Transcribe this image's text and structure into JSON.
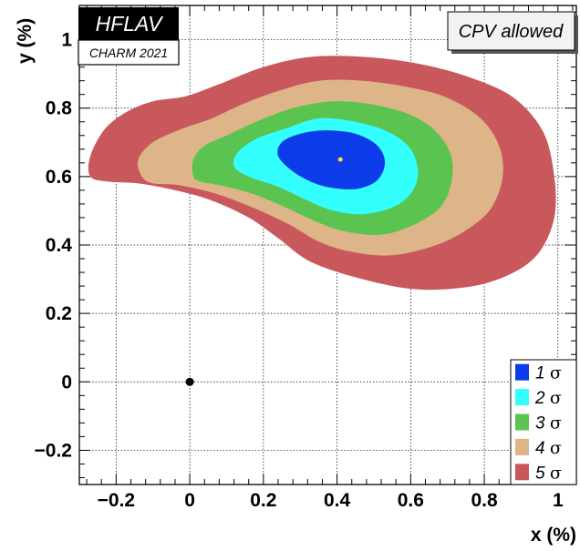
{
  "chart_data": {
    "type": "contour",
    "xlabel": "x (%)",
    "ylabel": "y (%)",
    "xlim": [
      -0.3,
      1.05
    ],
    "ylim": [
      -0.3,
      1.1
    ],
    "x_ticks": [
      -0.2,
      0,
      0.2,
      0.4,
      0.6,
      0.8,
      1
    ],
    "x_tick_labels": [
      "−0.2",
      "0",
      "0.2",
      "0.4",
      "0.6",
      "0.8",
      "1"
    ],
    "y_ticks": [
      -0.2,
      0,
      0.2,
      0.4,
      0.6,
      0.8,
      1
    ],
    "y_tick_labels": [
      "−0.2",
      "0",
      "0.2",
      "0.4",
      "0.6",
      "0.8",
      "1"
    ],
    "grid": true,
    "badge": {
      "title": "HFLAV",
      "subtitle": "CHARM 2021"
    },
    "annotation": "CPV allowed",
    "best_fit": {
      "x": 0.409,
      "y": 0.65
    },
    "no_mixing_point": {
      "x": 0.0,
      "y": 0.0
    },
    "legend_position": "bottom-right",
    "contours": [
      {
        "name": "5",
        "unit": "σ",
        "color": "#c9585d",
        "points": [
          [
            -0.27,
            0.6
          ],
          [
            -0.27,
            0.66
          ],
          [
            -0.23,
            0.74
          ],
          [
            -0.17,
            0.79
          ],
          [
            -0.1,
            0.82
          ],
          [
            -0.01,
            0.835
          ],
          [
            0.08,
            0.87
          ],
          [
            0.2,
            0.92
          ],
          [
            0.33,
            0.95
          ],
          [
            0.47,
            0.95
          ],
          [
            0.62,
            0.93
          ],
          [
            0.76,
            0.89
          ],
          [
            0.88,
            0.83
          ],
          [
            0.96,
            0.73
          ],
          [
            0.99,
            0.6
          ],
          [
            0.99,
            0.48
          ],
          [
            0.95,
            0.38
          ],
          [
            0.88,
            0.32
          ],
          [
            0.77,
            0.28
          ],
          [
            0.62,
            0.27
          ],
          [
            0.47,
            0.3
          ],
          [
            0.33,
            0.35
          ],
          [
            0.24,
            0.42
          ],
          [
            0.16,
            0.48
          ],
          [
            0.06,
            0.53
          ],
          [
            -0.04,
            0.56
          ],
          [
            -0.14,
            0.58
          ],
          [
            -0.22,
            0.585
          ]
        ]
      },
      {
        "name": "4",
        "unit": "σ",
        "color": "#ddb589",
        "points": [
          [
            -0.13,
            0.6
          ],
          [
            -0.14,
            0.65
          ],
          [
            -0.1,
            0.7
          ],
          [
            -0.02,
            0.74
          ],
          [
            0.06,
            0.77
          ],
          [
            0.14,
            0.81
          ],
          [
            0.24,
            0.85
          ],
          [
            0.35,
            0.88
          ],
          [
            0.47,
            0.88
          ],
          [
            0.6,
            0.86
          ],
          [
            0.7,
            0.83
          ],
          [
            0.79,
            0.77
          ],
          [
            0.84,
            0.69
          ],
          [
            0.85,
            0.6
          ],
          [
            0.82,
            0.51
          ],
          [
            0.76,
            0.45
          ],
          [
            0.67,
            0.4
          ],
          [
            0.55,
            0.37
          ],
          [
            0.44,
            0.38
          ],
          [
            0.35,
            0.41
          ],
          [
            0.27,
            0.46
          ],
          [
            0.17,
            0.51
          ],
          [
            0.07,
            0.55
          ],
          [
            -0.03,
            0.575
          ],
          [
            -0.1,
            0.58
          ]
        ]
      },
      {
        "name": "3",
        "unit": "σ",
        "color": "#5bc34f",
        "points": [
          [
            0.01,
            0.6
          ],
          [
            0.01,
            0.65
          ],
          [
            0.04,
            0.69
          ],
          [
            0.1,
            0.72
          ],
          [
            0.18,
            0.76
          ],
          [
            0.28,
            0.8
          ],
          [
            0.39,
            0.82
          ],
          [
            0.5,
            0.81
          ],
          [
            0.6,
            0.78
          ],
          [
            0.67,
            0.73
          ],
          [
            0.71,
            0.66
          ],
          [
            0.71,
            0.58
          ],
          [
            0.68,
            0.51
          ],
          [
            0.61,
            0.46
          ],
          [
            0.52,
            0.43
          ],
          [
            0.42,
            0.44
          ],
          [
            0.34,
            0.47
          ],
          [
            0.26,
            0.51
          ],
          [
            0.17,
            0.55
          ],
          [
            0.08,
            0.575
          ],
          [
            0.03,
            0.585
          ]
        ]
      },
      {
        "name": "2",
        "unit": "σ",
        "color": "#34ffff",
        "points": [
          [
            0.12,
            0.63
          ],
          [
            0.13,
            0.67
          ],
          [
            0.18,
            0.71
          ],
          [
            0.26,
            0.74
          ],
          [
            0.35,
            0.77
          ],
          [
            0.45,
            0.76
          ],
          [
            0.54,
            0.73
          ],
          [
            0.6,
            0.68
          ],
          [
            0.62,
            0.61
          ],
          [
            0.6,
            0.55
          ],
          [
            0.55,
            0.51
          ],
          [
            0.47,
            0.49
          ],
          [
            0.39,
            0.5
          ],
          [
            0.32,
            0.53
          ],
          [
            0.24,
            0.57
          ],
          [
            0.16,
            0.6
          ]
        ]
      },
      {
        "name": "1",
        "unit": "σ",
        "color": "#0c3be9",
        "points": [
          [
            0.24,
            0.66
          ],
          [
            0.25,
            0.7
          ],
          [
            0.3,
            0.725
          ],
          [
            0.37,
            0.735
          ],
          [
            0.45,
            0.725
          ],
          [
            0.51,
            0.69
          ],
          [
            0.53,
            0.64
          ],
          [
            0.51,
            0.59
          ],
          [
            0.46,
            0.565
          ],
          [
            0.4,
            0.565
          ],
          [
            0.34,
            0.58
          ],
          [
            0.28,
            0.615
          ]
        ]
      }
    ]
  }
}
